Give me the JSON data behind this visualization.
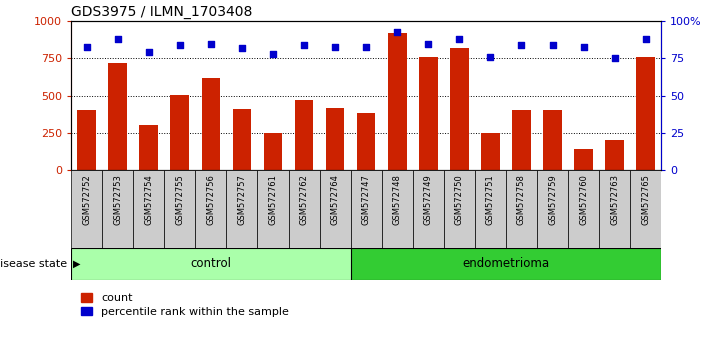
{
  "title": "GDS3975 / ILMN_1703408",
  "samples": [
    "GSM572752",
    "GSM572753",
    "GSM572754",
    "GSM572755",
    "GSM572756",
    "GSM572757",
    "GSM572761",
    "GSM572762",
    "GSM572764",
    "GSM572747",
    "GSM572748",
    "GSM572749",
    "GSM572750",
    "GSM572751",
    "GSM572758",
    "GSM572759",
    "GSM572760",
    "GSM572763",
    "GSM572765"
  ],
  "counts": [
    400,
    720,
    305,
    505,
    620,
    410,
    250,
    470,
    415,
    380,
    920,
    760,
    820,
    250,
    400,
    405,
    140,
    200,
    760
  ],
  "percentiles": [
    83,
    88,
    79,
    84,
    85,
    82,
    78,
    84,
    83,
    83,
    93,
    85,
    88,
    76,
    84,
    84,
    83,
    75,
    88
  ],
  "control_count": 9,
  "endometrioma_count": 10,
  "bar_color": "#cc2200",
  "dot_color": "#0000cc",
  "control_bg": "#aaffaa",
  "endometrioma_bg": "#33cc33",
  "xticklabel_bg": "#cccccc",
  "ylim_left": [
    0,
    1000
  ],
  "ylim_right": [
    0,
    100
  ],
  "yticks_left": [
    0,
    250,
    500,
    750,
    1000
  ],
  "yticks_right": [
    0,
    25,
    50,
    75,
    100
  ],
  "ytick_labels_right": [
    "0",
    "25",
    "50",
    "75",
    "100%"
  ],
  "grid_values": [
    250,
    500,
    750
  ],
  "legend_count_label": "count",
  "legend_percentile_label": "percentile rank within the sample",
  "disease_state_label": "disease state",
  "control_label": "control",
  "endometrioma_label": "endometrioma"
}
